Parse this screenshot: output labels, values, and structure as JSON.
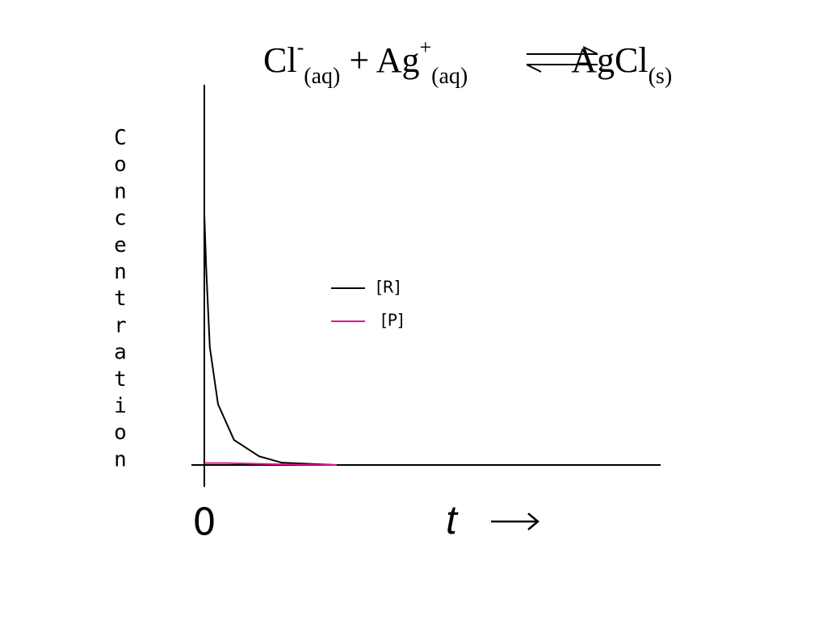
{
  "chart_data": {
    "type": "line",
    "title_parts": [
      "Cl",
      "-",
      "(aq)",
      "+ Ag",
      "+",
      "(aq)",
      "AgCl",
      "(s)"
    ],
    "y_label": "Concentration",
    "x_label": "t",
    "xlim": [
      0,
      10
    ],
    "xticks": [
      0
    ],
    "ylim": [
      0,
      10
    ],
    "legend": "center",
    "series": [
      {
        "name": "[R]",
        "color": "#000000",
        "x": [
          0,
          0.04,
          0.12,
          0.3,
          0.65,
          1.2,
          1.7,
          2.9
        ],
        "values": [
          6.6,
          5.2,
          3.1,
          1.6,
          0.66,
          0.23,
          0.06,
          0
        ]
      },
      {
        "name": "[P]",
        "color": "#e0148c",
        "x": [
          0,
          0.5,
          1.5,
          2.9
        ],
        "values": [
          0.05,
          0.05,
          0.02,
          0
        ]
      }
    ]
  }
}
